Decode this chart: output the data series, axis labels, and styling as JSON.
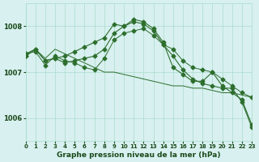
{
  "bg_color": "#d8f0f0",
  "grid_color": "#aaddcc",
  "line_color": "#2d6e2d",
  "title": "Graphe pression niveau de la mer (hPa)",
  "xlabel_color": "#1a4a1a",
  "ylim": [
    1005.5,
    1008.5
  ],
  "xlim": [
    0,
    23
  ],
  "yticks": [
    1006,
    1007,
    1008
  ],
  "xticks": [
    0,
    1,
    2,
    3,
    4,
    5,
    6,
    7,
    8,
    9,
    10,
    11,
    12,
    13,
    14,
    15,
    16,
    17,
    18,
    19,
    20,
    21,
    22,
    23
  ],
  "series1": {
    "x": [
      0,
      1,
      2,
      3,
      4,
      5,
      6,
      7,
      8,
      9,
      10,
      11,
      12,
      13,
      14,
      15,
      16,
      17,
      18,
      19,
      20,
      21,
      22,
      23
    ],
    "y": [
      1007.4,
      1007.5,
      1007.3,
      1007.5,
      1007.4,
      1007.3,
      1007.2,
      1007.1,
      1007.0,
      1007.0,
      1006.95,
      1006.9,
      1006.85,
      1006.8,
      1006.75,
      1006.7,
      1006.7,
      1006.65,
      1006.65,
      1006.6,
      1006.55,
      1006.55,
      1006.5,
      1006.45
    ]
  },
  "series2": {
    "x": [
      0,
      1,
      2,
      3,
      4,
      5,
      6,
      7,
      8,
      9,
      10,
      11,
      12,
      13,
      14,
      15,
      16,
      17,
      18,
      19,
      20,
      21,
      22,
      23
    ],
    "y": [
      1007.4,
      1007.45,
      1007.15,
      1007.35,
      1007.25,
      1007.2,
      1007.1,
      1007.05,
      1007.3,
      1007.7,
      1007.85,
      1007.9,
      1007.95,
      1007.8,
      1007.6,
      1007.5,
      1007.25,
      1007.1,
      1007.05,
      1007.0,
      1006.85,
      1006.7,
      1006.55,
      1006.45
    ]
  },
  "series3": {
    "x": [
      0,
      1,
      2,
      3,
      4,
      5,
      6,
      7,
      8,
      9,
      10,
      11,
      12,
      13,
      14,
      15,
      16,
      17,
      18,
      19,
      20,
      21,
      22,
      23
    ],
    "y": [
      1007.35,
      1007.5,
      1007.25,
      1007.3,
      1007.35,
      1007.45,
      1007.55,
      1007.65,
      1007.75,
      1008.05,
      1008.0,
      1008.1,
      1008.05,
      1007.9,
      1007.6,
      1007.35,
      1007.05,
      1006.85,
      1006.75,
      1006.7,
      1006.65,
      1006.65,
      1006.35,
      1005.8
    ]
  },
  "series4": {
    "x": [
      0,
      1,
      2,
      3,
      4,
      5,
      6,
      7,
      8,
      9,
      10,
      11,
      12,
      13,
      14,
      15,
      16,
      17,
      18,
      19,
      20,
      21,
      22,
      23
    ],
    "y": [
      1007.35,
      1007.5,
      1007.25,
      1007.3,
      1007.2,
      1007.25,
      1007.3,
      1007.35,
      1007.5,
      1007.85,
      1008.0,
      1008.15,
      1008.1,
      1007.95,
      1007.65,
      1007.1,
      1006.95,
      1006.8,
      1006.8,
      1007.0,
      1006.7,
      1006.55,
      1006.4,
      1005.85
    ]
  }
}
